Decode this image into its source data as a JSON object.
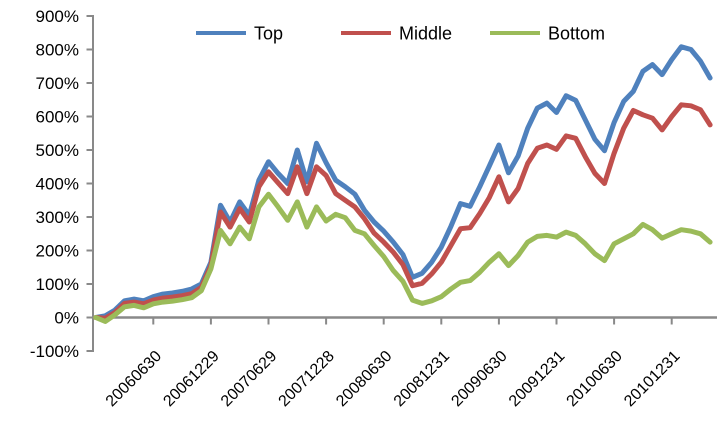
{
  "chart_data": {
    "type": "line",
    "title": "",
    "xlabel": "",
    "ylabel": "",
    "grid": false,
    "legend_position": "top",
    "axis_color": "#898989",
    "text_color": "#000000",
    "background": "#ffffff",
    "y_tick_labels": [
      "900%",
      "800%",
      "700%",
      "600%",
      "500%",
      "400%",
      "300%",
      "200%",
      "100%",
      "0%",
      "-100%"
    ],
    "y_tick_values": [
      900,
      800,
      700,
      600,
      500,
      400,
      300,
      200,
      100,
      0,
      -100
    ],
    "ylim": [
      -100,
      900
    ],
    "x_tick_labels": [
      "20060630",
      "20061229",
      "20070629",
      "20071228",
      "20080630",
      "20081231",
      "20090630",
      "20091231",
      "20100630",
      "20101231"
    ],
    "x_tick_indices": [
      6,
      12,
      18,
      24,
      30,
      36,
      42,
      48,
      54,
      60
    ],
    "x_unit": "month",
    "points_per_series": 65,
    "series": [
      {
        "name": "Top",
        "color": "#4F81BD",
        "values": [
          0,
          5,
          22,
          50,
          55,
          50,
          62,
          70,
          73,
          78,
          85,
          100,
          165,
          335,
          285,
          345,
          305,
          410,
          465,
          430,
          400,
          500,
          405,
          520,
          462,
          410,
          390,
          368,
          320,
          285,
          258,
          225,
          188,
          120,
          132,
          165,
          210,
          272,
          340,
          332,
          390,
          452,
          515,
          432,
          482,
          565,
          625,
          640,
          612,
          662,
          648,
          590,
          532,
          498,
          582,
          645,
          675,
          735,
          755,
          725,
          770,
          808,
          800,
          765,
          715
        ]
      },
      {
        "name": "Middle",
        "color": "#C0504D",
        "values": [
          0,
          -2,
          15,
          42,
          46,
          41,
          52,
          58,
          61,
          65,
          71,
          90,
          155,
          315,
          270,
          325,
          285,
          390,
          435,
          402,
          370,
          450,
          370,
          450,
          424,
          370,
          350,
          330,
          295,
          252,
          225,
          195,
          158,
          95,
          102,
          130,
          165,
          215,
          265,
          268,
          310,
          358,
          420,
          345,
          385,
          460,
          505,
          515,
          502,
          542,
          535,
          480,
          430,
          400,
          490,
          565,
          618,
          605,
          595,
          560,
          600,
          635,
          632,
          620,
          575
        ]
      },
      {
        "name": "Bottom",
        "color": "#9BBB59",
        "values": [
          0,
          -12,
          8,
          32,
          36,
          29,
          41,
          46,
          49,
          53,
          59,
          80,
          145,
          260,
          220,
          270,
          235,
          330,
          368,
          330,
          290,
          345,
          270,
          330,
          288,
          308,
          298,
          260,
          250,
          215,
          182,
          140,
          108,
          52,
          42,
          50,
          62,
          85,
          105,
          110,
          135,
          165,
          190,
          155,
          185,
          225,
          242,
          245,
          240,
          255,
          245,
          220,
          190,
          170,
          220,
          235,
          250,
          278,
          262,
          237,
          250,
          262,
          258,
          250,
          225
        ]
      }
    ],
    "legend": [
      {
        "label": "Top",
        "color": "#4F81BD"
      },
      {
        "label": "Middle",
        "color": "#C0504D"
      },
      {
        "label": "Bottom",
        "color": "#9BBB59"
      }
    ]
  }
}
